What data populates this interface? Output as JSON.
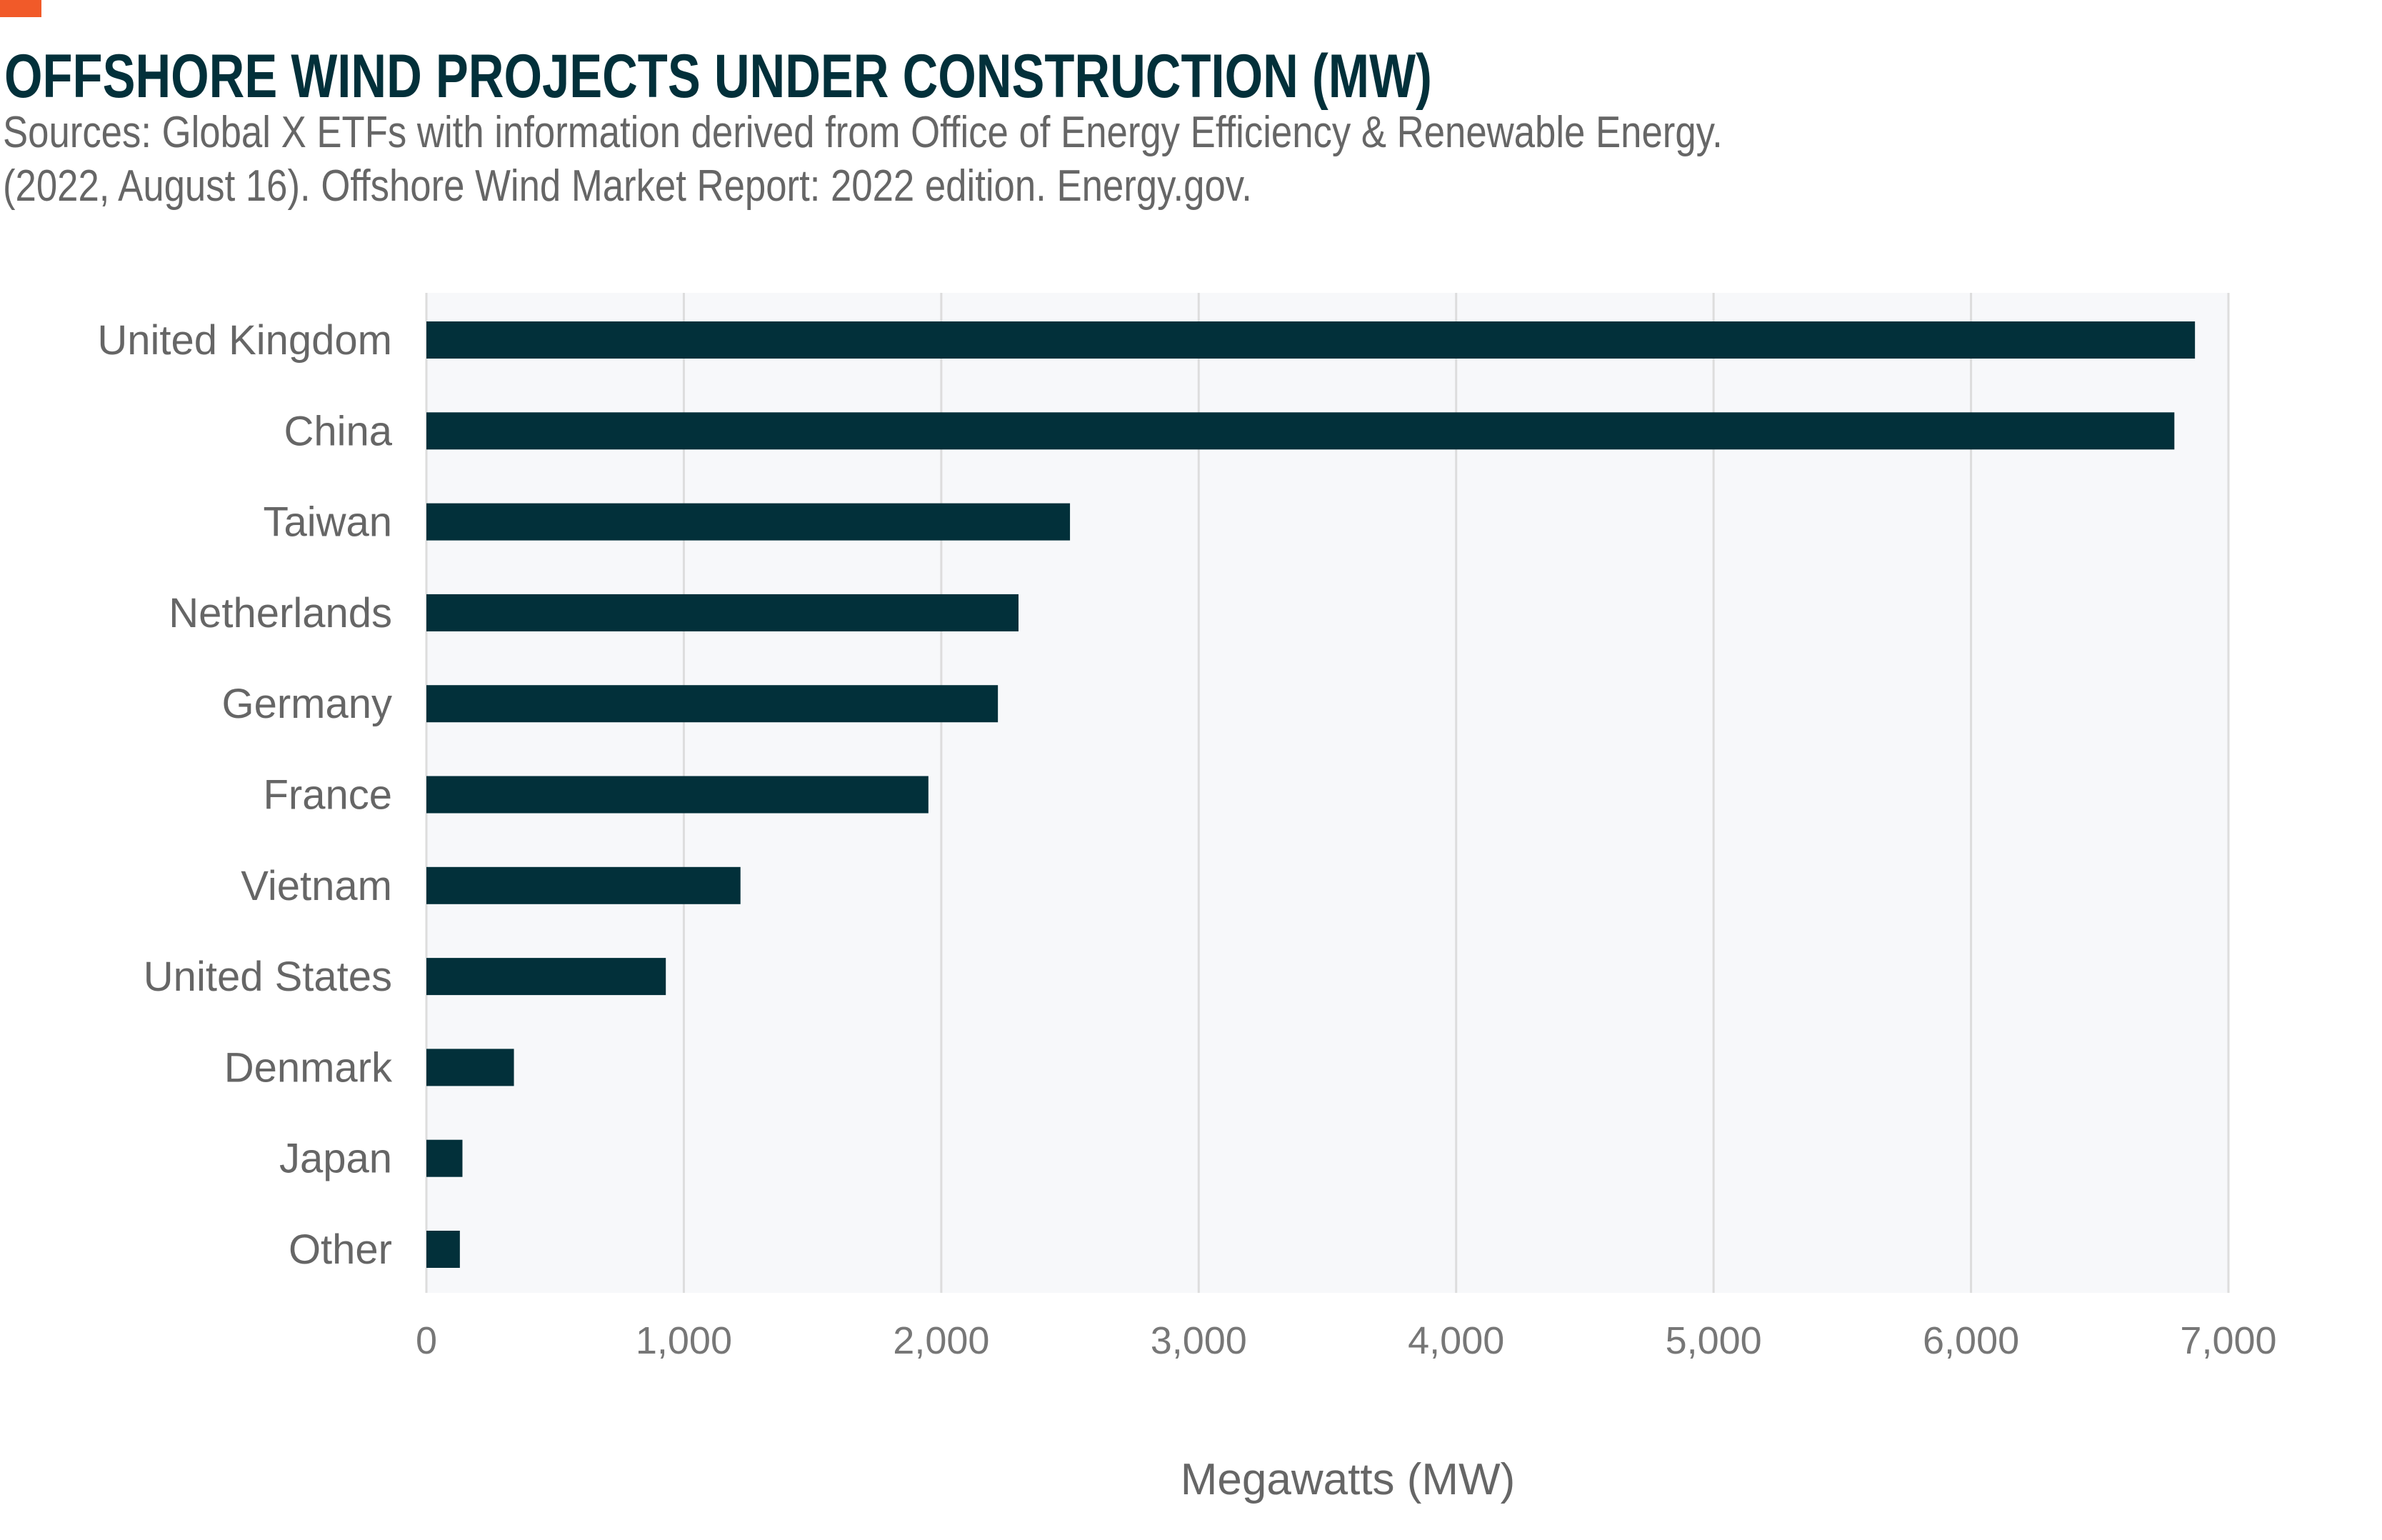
{
  "header": {
    "title": "OFFSHORE WIND PROJECTS UNDER CONSTRUCTION (MW)",
    "source_line1": "Sources: Global X ETFs with information derived from Office of Energy Efficiency & Renewable Energy.",
    "source_line2": "(2022, August 16). Offshore Wind Market Report: 2022 edition. Energy.gov."
  },
  "colors": {
    "accent": "#f15a29",
    "bar": "#02303a",
    "plot_bg": "#f7f8fa",
    "grid": "#dddddd"
  },
  "chart_data": {
    "type": "bar",
    "orientation": "horizontal",
    "title": "OFFSHORE WIND PROJECTS UNDER CONSTRUCTION (MW)",
    "categories": [
      "United Kingdom",
      "China",
      "Taiwan",
      "Netherlands",
      "Germany",
      "France",
      "Vietnam",
      "United States",
      "Denmark",
      "Japan",
      "Other"
    ],
    "values": [
      6870,
      6790,
      2500,
      2300,
      2220,
      1950,
      1220,
      930,
      340,
      140,
      130
    ],
    "xlabel": "Megawatts (MW)",
    "ylabel": "",
    "xlim": [
      0,
      7000
    ],
    "xticks": [
      0,
      1000,
      2000,
      3000,
      4000,
      5000,
      6000,
      7000
    ],
    "xtick_labels": [
      "0",
      "1,000",
      "2,000",
      "3,000",
      "4,000",
      "5,000",
      "6,000",
      "7,000"
    ],
    "grid": "vertical",
    "legend": "none"
  }
}
